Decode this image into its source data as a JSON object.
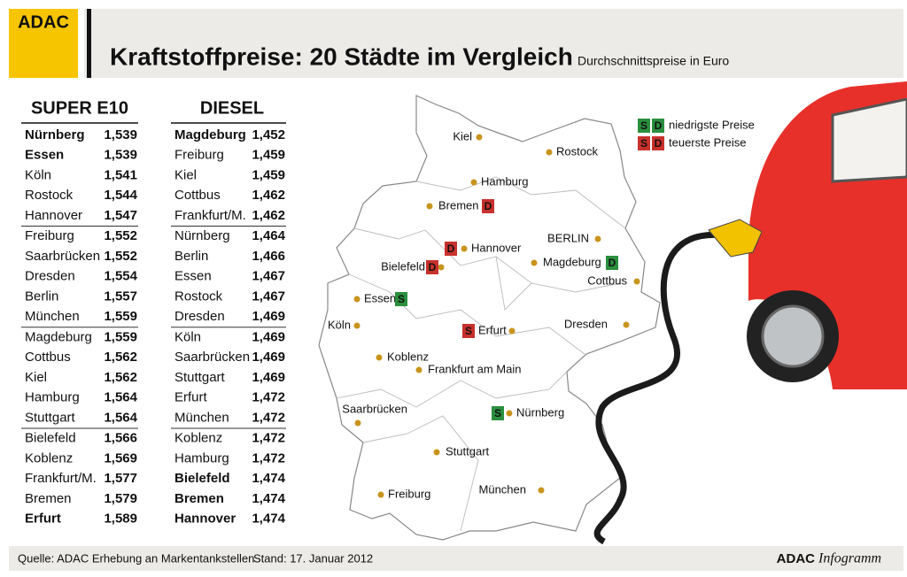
{
  "header": {
    "logo": "ADAC",
    "title": "Kraftstoffpreise: 20 Städte im Vergleich",
    "subtitle": "Durchschnittspreise in Euro"
  },
  "tables": [
    {
      "heading": "SUPER E10",
      "rows": [
        {
          "city": "Nürnberg",
          "price": "1,539",
          "highlight": "low"
        },
        {
          "city": "Essen",
          "price": "1,539",
          "highlight": "low"
        },
        {
          "city": "Köln",
          "price": "1,541"
        },
        {
          "city": "Rostock",
          "price": "1,544"
        },
        {
          "city": "Hannover",
          "price": "1,547"
        },
        {
          "city": "Freiburg",
          "price": "1,552"
        },
        {
          "city": "Saarbrücken",
          "price": "1,552"
        },
        {
          "city": "Dresden",
          "price": "1,554"
        },
        {
          "city": "Berlin",
          "price": "1,557"
        },
        {
          "city": "München",
          "price": "1,559"
        },
        {
          "city": "Magdeburg",
          "price": "1,559"
        },
        {
          "city": "Cottbus",
          "price": "1,562"
        },
        {
          "city": "Kiel",
          "price": "1,562"
        },
        {
          "city": "Hamburg",
          "price": "1,564"
        },
        {
          "city": "Stuttgart",
          "price": "1,564"
        },
        {
          "city": "Bielefeld",
          "price": "1,566"
        },
        {
          "city": "Koblenz",
          "price": "1,569"
        },
        {
          "city": "Frankfurt/M.",
          "price": "1,577"
        },
        {
          "city": "Bremen",
          "price": "1,579"
        },
        {
          "city": "Erfurt",
          "price": "1,589",
          "highlight": "high"
        }
      ]
    },
    {
      "heading": "DIESEL",
      "rows": [
        {
          "city": "Magdeburg",
          "price": "1,452",
          "highlight": "low"
        },
        {
          "city": "Freiburg",
          "price": "1,459"
        },
        {
          "city": "Kiel",
          "price": "1,459"
        },
        {
          "city": "Cottbus",
          "price": "1,462"
        },
        {
          "city": "Frankfurt/M.",
          "price": "1,462"
        },
        {
          "city": "Nürnberg",
          "price": "1,464"
        },
        {
          "city": "Berlin",
          "price": "1,466"
        },
        {
          "city": "Essen",
          "price": "1,467"
        },
        {
          "city": "Rostock",
          "price": "1,467"
        },
        {
          "city": "Dresden",
          "price": "1,469"
        },
        {
          "city": "Köln",
          "price": "1,469"
        },
        {
          "city": "Saarbrücken",
          "price": "1,469"
        },
        {
          "city": "Stuttgart",
          "price": "1,469"
        },
        {
          "city": "Erfurt",
          "price": "1,472"
        },
        {
          "city": "München",
          "price": "1,472"
        },
        {
          "city": "Koblenz",
          "price": "1,472"
        },
        {
          "city": "Hamburg",
          "price": "1,472"
        },
        {
          "city": "Bielefeld",
          "price": "1,474",
          "highlight": "high"
        },
        {
          "city": "Bremen",
          "price": "1,474",
          "highlight": "high"
        },
        {
          "city": "Hannover",
          "price": "1,474",
          "highlight": "high"
        }
      ]
    }
  ],
  "legend": [
    {
      "badges": [
        "S",
        "D"
      ],
      "kind": "low",
      "label": "niedrigste Preise"
    },
    {
      "badges": [
        "S",
        "D"
      ],
      "kind": "high",
      "label": "teuerste Preise"
    }
  ],
  "map": {
    "cities": [
      {
        "name": "Kiel"
      },
      {
        "name": "Rostock"
      },
      {
        "name": "Hamburg"
      },
      {
        "name": "Bremen",
        "badge": {
          "letter": "D",
          "kind": "high"
        }
      },
      {
        "name": "Hannover",
        "badge": {
          "letter": "D",
          "kind": "high"
        }
      },
      {
        "name": "BERLIN"
      },
      {
        "name": "Bielefeld",
        "badge": {
          "letter": "D",
          "kind": "high"
        }
      },
      {
        "name": "Magdeburg",
        "badge": {
          "letter": "D",
          "kind": "low"
        }
      },
      {
        "name": "Cottbus"
      },
      {
        "name": "Essen",
        "badge": {
          "letter": "S",
          "kind": "low"
        }
      },
      {
        "name": "Köln"
      },
      {
        "name": "Erfurt",
        "badge": {
          "letter": "S",
          "kind": "high"
        }
      },
      {
        "name": "Dresden"
      },
      {
        "name": "Koblenz"
      },
      {
        "name": "Frankfurt am Main"
      },
      {
        "name": "Saarbrücken"
      },
      {
        "name": "Nürnberg",
        "badge": {
          "letter": "S",
          "kind": "low"
        }
      },
      {
        "name": "Stuttgart"
      },
      {
        "name": "Freiburg"
      },
      {
        "name": "München"
      }
    ]
  },
  "footer": {
    "source": "Quelle: ADAC Erhebung an Markentankstellen",
    "date": "Stand: 17. Januar 2012",
    "brand": "ADAC",
    "product": "Infogramm"
  }
}
